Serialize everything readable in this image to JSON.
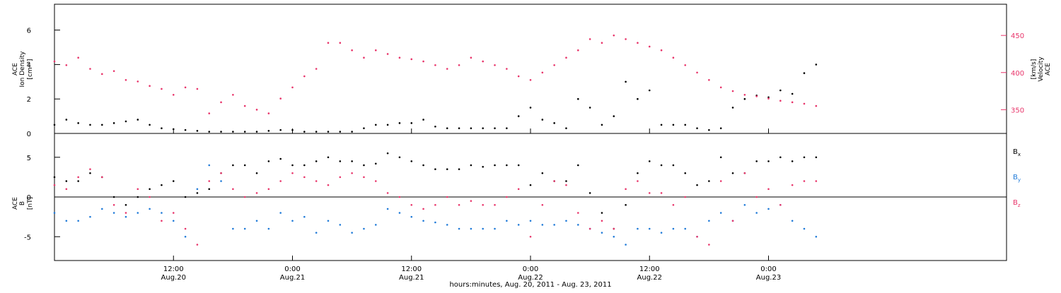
{
  "chart_data": [
    {
      "type": "scatter",
      "panel": "top",
      "left_axis": {
        "label_lines": [
          "ACE",
          "Ion Density"
        ],
        "unit": "[cm⁻³]",
        "ylim": [
          0,
          7.5
        ],
        "ticks": [
          0,
          2,
          4,
          6
        ]
      },
      "right_axis": {
        "label_lines": [
          "ACE",
          "Velocity"
        ],
        "unit": "[km/s]",
        "ylim": [
          318,
          492
        ],
        "ticks": [
          350,
          400,
          450
        ],
        "color": "#e8346a"
      },
      "series": [
        {
          "axis": "left",
          "color": "#000000",
          "x": [
            0,
            0.05,
            0.1,
            0.15,
            0.2,
            0.25,
            0.3,
            0.35,
            0.4,
            0.45,
            0.5,
            0.55,
            0.6,
            0.65,
            0.7,
            0.75,
            0.8,
            0.85,
            0.9,
            0.95,
            1.0,
            1.05,
            1.1,
            1.15,
            1.2,
            1.25,
            1.3,
            1.35,
            1.4,
            1.45,
            1.5,
            1.55,
            1.6,
            1.65,
            1.7,
            1.75,
            1.8,
            1.85,
            1.9,
            1.95,
            2.0,
            2.05,
            2.1,
            2.15,
            2.2,
            2.25,
            2.3,
            2.35,
            2.4,
            2.45,
            2.5,
            2.55,
            2.6,
            2.65,
            2.7,
            2.75,
            2.8,
            2.85,
            2.9,
            2.95,
            3.0,
            3.05,
            3.1,
            3.15,
            3.2
          ],
          "values": [
            0.5,
            0.8,
            0.6,
            0.5,
            0.5,
            0.6,
            0.7,
            0.8,
            0.5,
            0.3,
            0.25,
            0.2,
            0.15,
            0.1,
            0.1,
            0.1,
            0.1,
            0.1,
            0.15,
            0.2,
            0.2,
            0.1,
            0.1,
            0.1,
            0.1,
            0.1,
            0.3,
            0.5,
            0.5,
            0.6,
            0.6,
            0.8,
            0.4,
            0.3,
            0.3,
            0.3,
            0.3,
            0.3,
            0.3,
            1.0,
            1.5,
            0.8,
            0.6,
            0.3,
            2.0,
            1.5,
            0.5,
            1.0,
            3.0,
            2.0,
            2.5,
            0.5,
            0.5,
            0.5,
            0.3,
            0.2,
            0.3,
            1.5,
            2.0,
            2.2,
            2.1,
            2.5,
            2.3,
            3.5,
            4.0
          ]
        },
        {
          "axis": "right",
          "color": "#e8346a",
          "x": [
            0,
            0.05,
            0.1,
            0.15,
            0.2,
            0.25,
            0.3,
            0.35,
            0.4,
            0.45,
            0.5,
            0.55,
            0.6,
            0.65,
            0.7,
            0.75,
            0.8,
            0.85,
            0.9,
            0.95,
            1.0,
            1.05,
            1.1,
            1.15,
            1.2,
            1.25,
            1.3,
            1.35,
            1.4,
            1.45,
            1.5,
            1.55,
            1.6,
            1.65,
            1.7,
            1.75,
            1.8,
            1.85,
            1.9,
            1.95,
            2.0,
            2.05,
            2.1,
            2.15,
            2.2,
            2.25,
            2.3,
            2.35,
            2.4,
            2.45,
            2.5,
            2.55,
            2.6,
            2.65,
            2.7,
            2.75,
            2.8,
            2.85,
            2.9,
            2.95,
            3.0,
            3.05,
            3.1,
            3.15,
            3.2
          ],
          "values": [
            415,
            410,
            420,
            405,
            398,
            402,
            390,
            388,
            382,
            378,
            370,
            380,
            378,
            345,
            360,
            370,
            355,
            350,
            345,
            365,
            380,
            395,
            405,
            440,
            440,
            430,
            420,
            430,
            425,
            420,
            418,
            415,
            410,
            405,
            410,
            420,
            415,
            410,
            405,
            395,
            390,
            400,
            410,
            420,
            430,
            445,
            440,
            450,
            445,
            440,
            435,
            430,
            420,
            410,
            400,
            390,
            380,
            375,
            370,
            368,
            365,
            362,
            360,
            358,
            355
          ]
        }
      ]
    },
    {
      "type": "scatter",
      "panel": "bottom",
      "left_axis": {
        "label_lines": [
          "ACE",
          "B"
        ],
        "unit": "[nT]",
        "ylim": [
          -8,
          8
        ],
        "ticks": [
          -5,
          0,
          5
        ]
      },
      "legend": [
        "Bx",
        "By",
        "Bz"
      ],
      "series": [
        {
          "name": "Bx",
          "color": "#000000",
          "x": [
            0,
            0.05,
            0.1,
            0.15,
            0.2,
            0.25,
            0.3,
            0.35,
            0.4,
            0.45,
            0.5,
            0.55,
            0.6,
            0.65,
            0.7,
            0.75,
            0.8,
            0.85,
            0.9,
            0.95,
            1.0,
            1.05,
            1.1,
            1.15,
            1.2,
            1.25,
            1.3,
            1.35,
            1.4,
            1.45,
            1.5,
            1.55,
            1.6,
            1.65,
            1.7,
            1.75,
            1.8,
            1.85,
            1.9,
            1.95,
            2.0,
            2.05,
            2.1,
            2.15,
            2.2,
            2.25,
            2.3,
            2.35,
            2.4,
            2.45,
            2.5,
            2.55,
            2.6,
            2.65,
            2.7,
            2.75,
            2.8,
            2.85,
            2.9,
            2.95,
            3.0,
            3.05,
            3.1,
            3.15,
            3.2
          ],
          "values": [
            2.5,
            2.0,
            2.0,
            3.0,
            2.5,
            0.0,
            -1.0,
            0.0,
            1.0,
            1.5,
            2.0,
            0.0,
            0.5,
            1.0,
            3.0,
            4.0,
            4.0,
            3.0,
            4.5,
            4.8,
            4.0,
            4.0,
            4.5,
            5.0,
            4.5,
            4.5,
            4.0,
            4.2,
            5.5,
            5.0,
            4.5,
            4.0,
            3.5,
            3.5,
            3.5,
            4.0,
            3.8,
            4.0,
            4.0,
            4.0,
            1.5,
            3.0,
            2.0,
            2.0,
            4.0,
            0.5,
            -2.0,
            -4.0,
            -1.0,
            3.0,
            4.5,
            4.0,
            4.0,
            3.0,
            1.5,
            2.0,
            5.0,
            3.0,
            3.0,
            4.5,
            4.5,
            5.0,
            4.5,
            5.0,
            5.0
          ]
        },
        {
          "name": "By",
          "color": "#1f7ad8",
          "x": [
            0,
            0.05,
            0.1,
            0.15,
            0.2,
            0.25,
            0.3,
            0.35,
            0.4,
            0.45,
            0.5,
            0.55,
            0.6,
            0.65,
            0.7,
            0.75,
            0.8,
            0.85,
            0.9,
            0.95,
            1.0,
            1.05,
            1.1,
            1.15,
            1.2,
            1.25,
            1.3,
            1.35,
            1.4,
            1.45,
            1.5,
            1.55,
            1.6,
            1.65,
            1.7,
            1.75,
            1.8,
            1.85,
            1.9,
            1.95,
            2.0,
            2.05,
            2.1,
            2.15,
            2.2,
            2.25,
            2.3,
            2.35,
            2.4,
            2.45,
            2.5,
            2.55,
            2.6,
            2.65,
            2.7,
            2.75,
            2.8,
            2.85,
            2.9,
            2.95,
            3.0,
            3.05,
            3.1,
            3.15,
            3.2
          ],
          "values": [
            -2.0,
            -3.0,
            -3.0,
            -2.5,
            -1.5,
            -2.0,
            -2.5,
            -2.0,
            -1.5,
            -2.0,
            -3.0,
            -5.0,
            1.0,
            4.0,
            2.0,
            -4.0,
            -4.0,
            -3.0,
            -4.0,
            -2.0,
            -3.0,
            -2.5,
            -4.5,
            -3.0,
            -3.5,
            -4.5,
            -4.0,
            -3.5,
            -1.5,
            -2.0,
            -2.5,
            -3.0,
            -3.2,
            -3.5,
            -4.0,
            -4.0,
            -4.0,
            -4.0,
            -3.0,
            -3.5,
            -3.0,
            -3.5,
            -3.5,
            -3.0,
            -3.5,
            -4.0,
            -4.5,
            -5.0,
            -6.0,
            -4.0,
            -4.0,
            -4.5,
            -4.0,
            -4.0,
            -5.0,
            -3.0,
            -2.0,
            -3.0,
            -1.0,
            -2.0,
            -1.5,
            -1.0,
            -3.0,
            -4.0,
            -5.0
          ]
        },
        {
          "name": "Bz",
          "color": "#e8346a",
          "x": [
            0,
            0.05,
            0.1,
            0.15,
            0.2,
            0.25,
            0.3,
            0.35,
            0.4,
            0.45,
            0.5,
            0.55,
            0.6,
            0.65,
            0.7,
            0.75,
            0.8,
            0.85,
            0.9,
            0.95,
            1.0,
            1.05,
            1.1,
            1.15,
            1.2,
            1.25,
            1.3,
            1.35,
            1.4,
            1.45,
            1.5,
            1.55,
            1.6,
            1.65,
            1.7,
            1.75,
            1.8,
            1.85,
            1.9,
            1.95,
            2.0,
            2.05,
            2.1,
            2.15,
            2.2,
            2.25,
            2.3,
            2.35,
            2.4,
            2.45,
            2.5,
            2.55,
            2.6,
            2.65,
            2.7,
            2.75,
            2.8,
            2.85,
            2.9,
            2.95,
            3.0,
            3.05,
            3.1,
            3.15,
            3.2
          ],
          "values": [
            1.5,
            1.0,
            2.5,
            3.5,
            2.5,
            -1.0,
            -2.0,
            1.0,
            0.0,
            -3.0,
            -2.0,
            -4.0,
            -6.0,
            2.0,
            3.0,
            1.0,
            0.0,
            0.5,
            1.0,
            2.0,
            3.0,
            2.5,
            2.0,
            1.5,
            2.5,
            3.0,
            2.5,
            2.0,
            0.5,
            0.0,
            -1.0,
            -1.5,
            -1.0,
            0.0,
            -1.0,
            -0.5,
            -1.0,
            -1.0,
            0.0,
            1.0,
            -5.0,
            -1.0,
            2.0,
            1.5,
            -2.0,
            -4.0,
            -3.0,
            -4.0,
            1.0,
            2.0,
            0.5,
            0.5,
            -1.0,
            0.0,
            -5.0,
            -6.0,
            2.0,
            -3.0,
            3.0,
            0.0,
            1.0,
            -1.0,
            1.5,
            2.0,
            2.0
          ]
        }
      ]
    }
  ],
  "x_axis": {
    "ticks": [
      {
        "value": 0.5,
        "line1": "12:00",
        "line2": "Aug.20"
      },
      {
        "value": 1.0,
        "line1": "0:00",
        "line2": "Aug.21"
      },
      {
        "value": 1.5,
        "line1": "12:00",
        "line2": "Aug.21"
      },
      {
        "value": 2.0,
        "line1": "0:00",
        "line2": "Aug.22"
      },
      {
        "value": 2.5,
        "line1": "12:00",
        "line2": "Aug.22"
      },
      {
        "value": 3.0,
        "line1": "0:00",
        "line2": "Aug.23"
      }
    ],
    "xlim": [
      0,
      4.0
    ],
    "label": "hours:minutes, Aug. 20, 2011 - Aug. 23, 2011"
  }
}
